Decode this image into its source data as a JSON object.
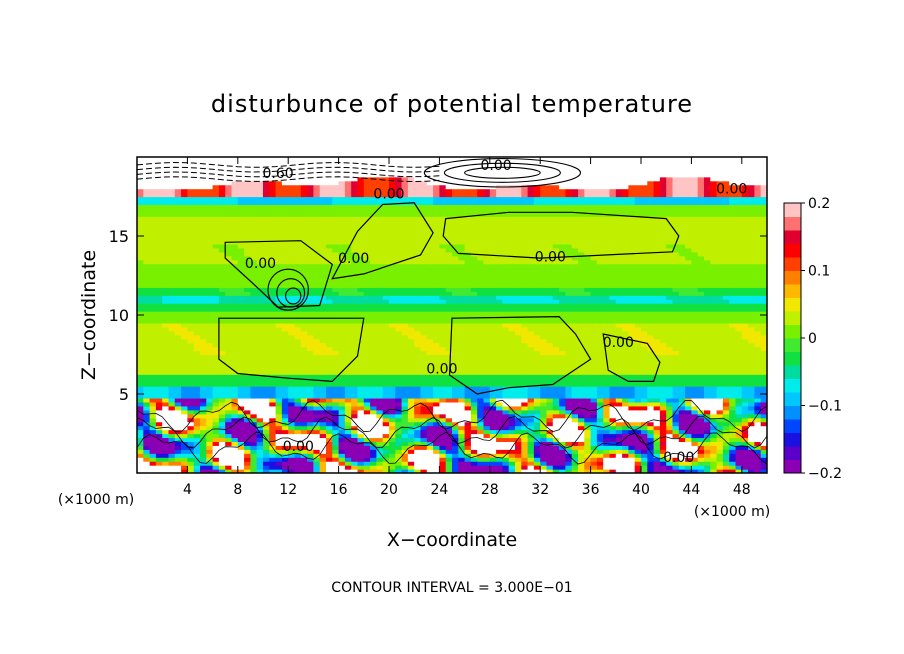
{
  "chart_data": {
    "type": "heatmap",
    "title": "disturbunce of potential temperature",
    "xlabel": "X−coordinate",
    "ylabel": "Z−coordinate",
    "x_unit": "(×1000 m)",
    "z_unit": "(×1000 m)",
    "xlim": [
      0,
      50
    ],
    "ylim": [
      0,
      20
    ],
    "x_ticks": [
      4,
      8,
      12,
      16,
      20,
      24,
      28,
      32,
      36,
      40,
      44,
      48
    ],
    "y_ticks": [
      5,
      10,
      15
    ],
    "colorbar": {
      "range": [
        -0.2,
        0.2
      ],
      "ticks": [
        {
          "value": 0.2,
          "label": "0.2"
        },
        {
          "value": 0.1,
          "label": "0.1"
        },
        {
          "value": 0,
          "label": "0"
        },
        {
          "value": -0.1,
          "label": "−0.1"
        },
        {
          "value": -0.2,
          "label": "−0.2"
        }
      ],
      "colors": [
        "#8b00b5",
        "#5a00c8",
        "#1a10e0",
        "#0046ff",
        "#0090ff",
        "#00c8ff",
        "#00ecec",
        "#00dca0",
        "#10e040",
        "#40ea30",
        "#78f000",
        "#c0f000",
        "#f0e800",
        "#ffb800",
        "#ff8000",
        "#ff4000",
        "#ff0000",
        "#e00030",
        "#ff7070",
        "#ffc4c4"
      ]
    },
    "contour_labels": [
      {
        "text": "0.00",
        "x": 28.5,
        "y": 19.5
      },
      {
        "text": "0.60",
        "x": 11.2,
        "y": 19.0
      },
      {
        "text": "0.00",
        "x": 20.0,
        "y": 17.7
      },
      {
        "text": "0.00",
        "x": 47.2,
        "y": 18.0
      },
      {
        "text": "0.00",
        "x": 9.8,
        "y": 13.3
      },
      {
        "text": "0.00",
        "x": 17.2,
        "y": 13.6
      },
      {
        "text": "0.00",
        "x": 32.8,
        "y": 13.7
      },
      {
        "text": "0.00",
        "x": 38.2,
        "y": 8.3
      },
      {
        "text": "0.00",
        "x": 24.2,
        "y": 6.6
      },
      {
        "text": "0.00",
        "x": 12.8,
        "y": 1.7
      },
      {
        "text": "0.00",
        "x": 43.0,
        "y": 1.0
      }
    ],
    "annotation": "CONTOUR INTERVAL = 3.000E−01"
  }
}
